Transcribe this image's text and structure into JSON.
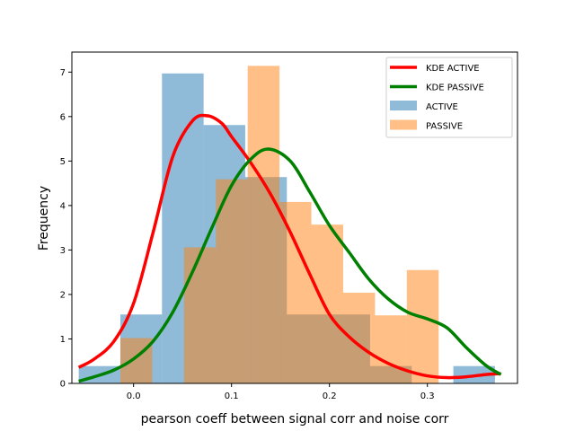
{
  "chart_data": {
    "type": "histogram",
    "title": "",
    "xlabel": "pearson coeff between signal corr and noise corr",
    "ylabel": "Frequency",
    "xlim": [
      -0.063,
      0.392
    ],
    "ylim": [
      0,
      7.45
    ],
    "xticks": [
      0.0,
      0.1,
      0.2,
      0.3
    ],
    "xtick_labels": [
      "0.0",
      "0.1",
      "0.2",
      "0.3"
    ],
    "yticks": [
      0,
      1,
      2,
      3,
      4,
      5,
      6,
      7
    ],
    "ytick_labels": [
      "0",
      "1",
      "2",
      "3",
      "4",
      "5",
      "6",
      "7"
    ],
    "grid": false,
    "legend_position": "top-right",
    "histograms": [
      {
        "name": "ACTIVE",
        "color": "#1f77b4",
        "alpha": 0.5,
        "bin_edges": [
          -0.056,
          -0.0135,
          0.029,
          0.0715,
          0.114,
          0.1565,
          0.199,
          0.2415,
          0.284,
          0.3265,
          0.369
        ],
        "values": [
          0.39,
          1.55,
          6.97,
          5.81,
          4.64,
          1.55,
          1.55,
          0.39,
          0.0,
          0.39
        ]
      },
      {
        "name": "PASSIVE",
        "color": "#ff7f0e",
        "alpha": 0.5,
        "bin_edges": [
          -0.0135,
          0.019,
          0.0515,
          0.084,
          0.1165,
          0.149,
          0.1815,
          0.214,
          0.2465,
          0.279,
          0.3115
        ],
        "values": [
          1.02,
          0.0,
          3.06,
          4.59,
          7.14,
          4.08,
          3.57,
          2.04,
          1.53,
          2.55
        ]
      }
    ],
    "lines": [
      {
        "name": "KDE ACTIVE",
        "color": "#ff0000",
        "x": [
          -0.056,
          -0.04,
          -0.02,
          0.0,
          0.02,
          0.04,
          0.06,
          0.075,
          0.09,
          0.1,
          0.12,
          0.14,
          0.16,
          0.18,
          0.2,
          0.22,
          0.24,
          0.26,
          0.28,
          0.3,
          0.32,
          0.34,
          0.36,
          0.375
        ],
        "y": [
          0.36,
          0.55,
          0.95,
          1.8,
          3.4,
          5.1,
          5.9,
          6.02,
          5.85,
          5.55,
          4.95,
          4.25,
          3.4,
          2.45,
          1.55,
          1.05,
          0.7,
          0.45,
          0.28,
          0.17,
          0.13,
          0.15,
          0.2,
          0.22
        ]
      },
      {
        "name": "KDE PASSIVE",
        "color": "#008000",
        "x": [
          -0.056,
          -0.04,
          -0.02,
          0.0,
          0.02,
          0.04,
          0.06,
          0.08,
          0.1,
          0.12,
          0.138,
          0.16,
          0.18,
          0.2,
          0.22,
          0.24,
          0.26,
          0.28,
          0.3,
          0.32,
          0.34,
          0.36,
          0.375
        ],
        "y": [
          0.05,
          0.15,
          0.3,
          0.55,
          0.95,
          1.6,
          2.5,
          3.5,
          4.45,
          5.05,
          5.27,
          5.0,
          4.3,
          3.55,
          2.95,
          2.35,
          1.9,
          1.6,
          1.45,
          1.25,
          0.8,
          0.4,
          0.2
        ]
      }
    ],
    "legend": [
      "KDE ACTIVE",
      "KDE PASSIVE",
      "ACTIVE",
      "PASSIVE"
    ]
  }
}
